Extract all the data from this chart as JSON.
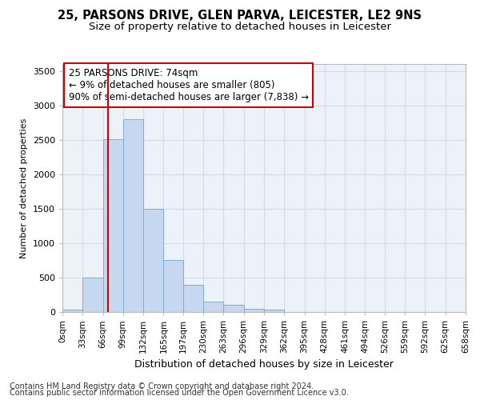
{
  "title": "25, PARSONS DRIVE, GLEN PARVA, LEICESTER, LE2 9NS",
  "subtitle": "Size of property relative to detached houses in Leicester",
  "xlabel": "Distribution of detached houses by size in Leicester",
  "ylabel": "Number of detached properties",
  "bin_edges": [
    0,
    33,
    66,
    99,
    132,
    165,
    197,
    230,
    263,
    296,
    329,
    362,
    395,
    428,
    461,
    494,
    526,
    559,
    592,
    625,
    658
  ],
  "bar_heights": [
    30,
    500,
    2510,
    2800,
    1500,
    750,
    400,
    150,
    100,
    50,
    40,
    5,
    5,
    0,
    0,
    0,
    0,
    0,
    0,
    0
  ],
  "bar_color": "#c5d8ef",
  "bar_edge_color": "#7aafd4",
  "grid_color": "#d0dcea",
  "bg_color": "#edf1f8",
  "vline_x": 74,
  "vline_color": "#cc0000",
  "annotation_text": "25 PARSONS DRIVE: 74sqm\n← 9% of detached houses are smaller (805)\n90% of semi-detached houses are larger (7,838) →",
  "annotation_box_color": "#cc0000",
  "ylim": [
    0,
    3600
  ],
  "yticks": [
    0,
    500,
    1000,
    1500,
    2000,
    2500,
    3000,
    3500
  ],
  "footer1": "Contains HM Land Registry data © Crown copyright and database right 2024.",
  "footer2": "Contains public sector information licensed under the Open Government Licence v3.0.",
  "title_fontsize": 10.5,
  "subtitle_fontsize": 9.5,
  "ylabel_fontsize": 8,
  "xlabel_fontsize": 9,
  "tick_label_fontsize": 7.5,
  "annotation_fontsize": 8.5,
  "footer_fontsize": 7
}
